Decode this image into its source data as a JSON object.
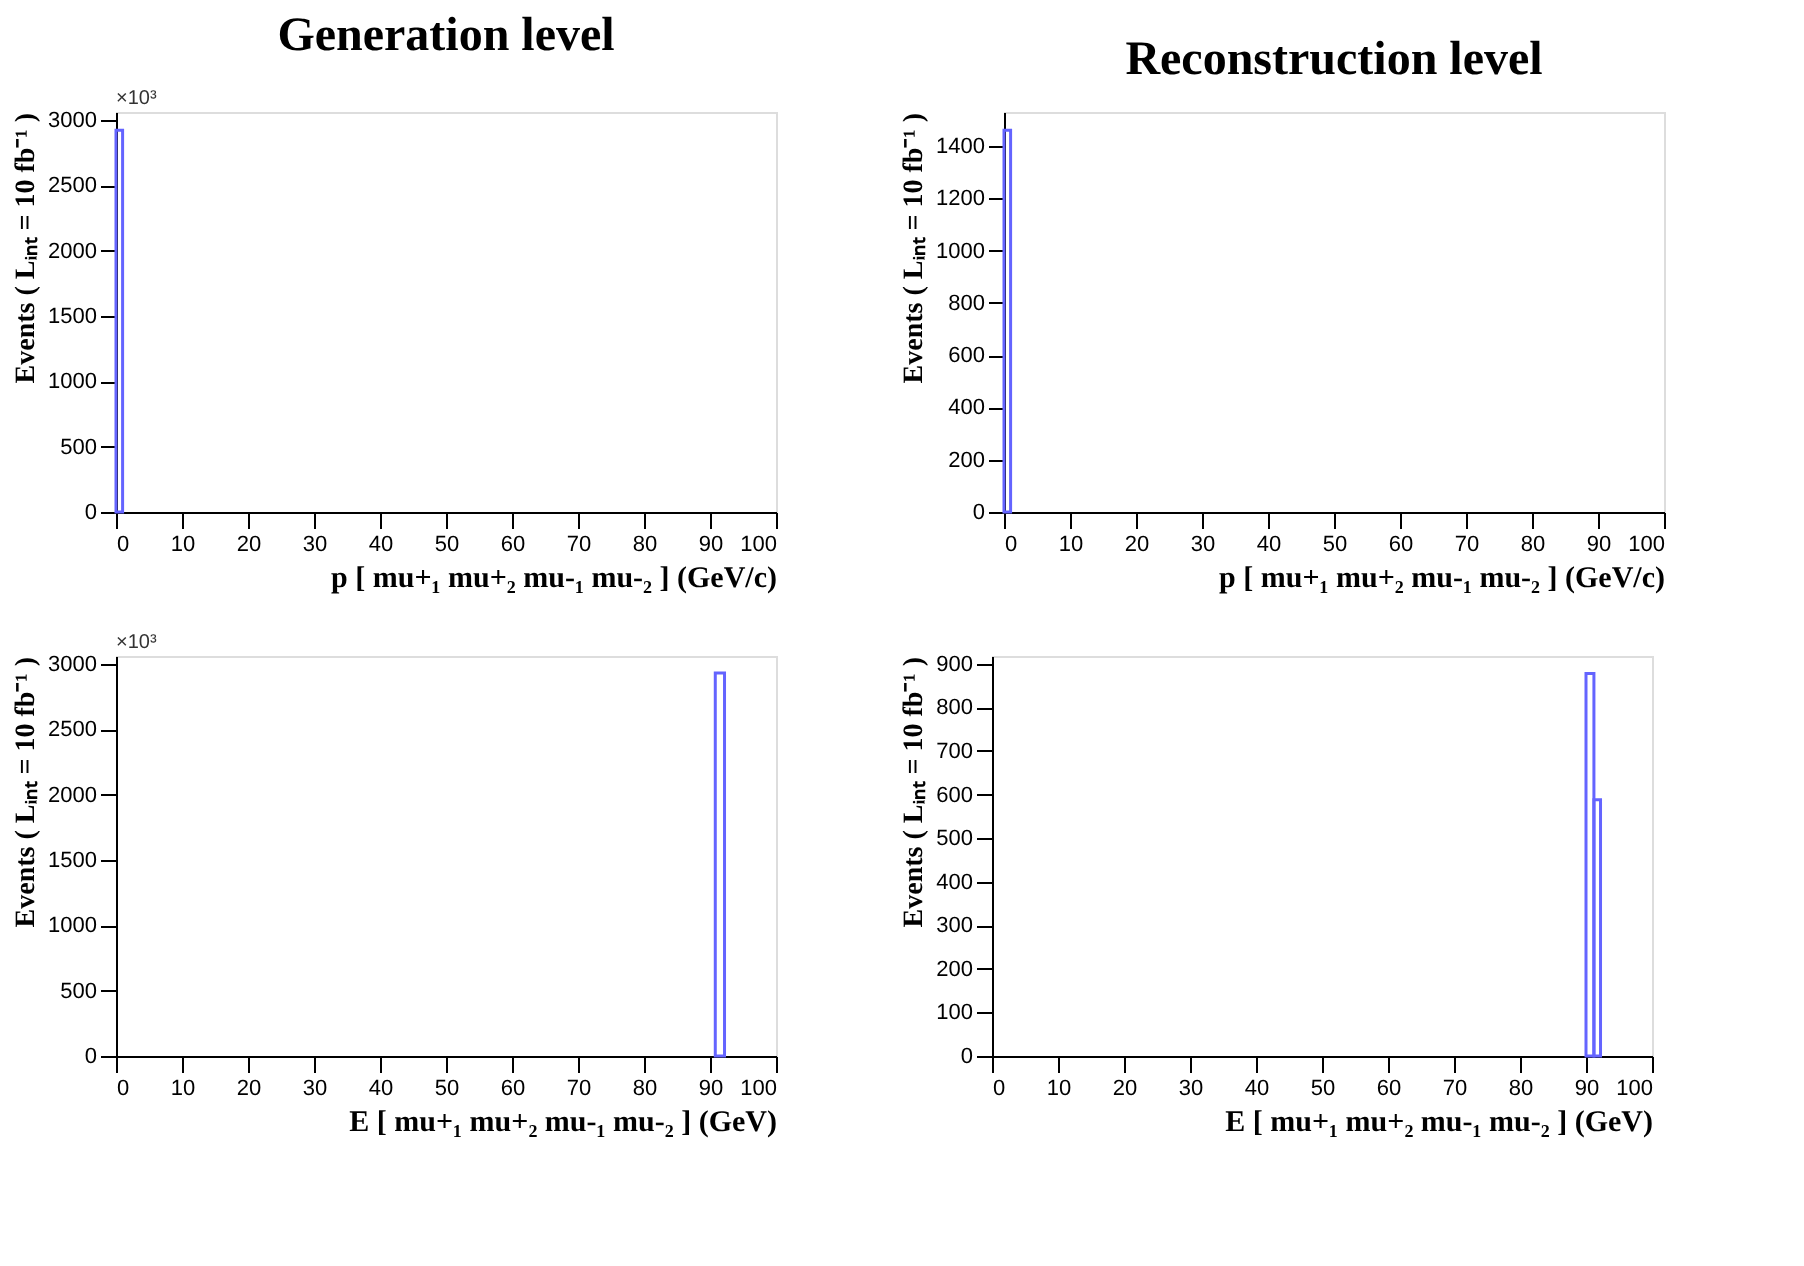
{
  "chart_data": [
    {
      "type": "histogram",
      "title": "Generation level",
      "xlabel": "p [ mu+₁ mu+₂ mu-₁ mu-₂ ] (GeV/c)",
      "ylabel": "Events ( Lᵢₙₜ = 10 fb⁻¹ )",
      "annotations": [
        "×10³"
      ],
      "bins": [
        0,
        1
      ],
      "values": [
        2920
      ],
      "color": "#6464ff",
      "xlim": [
        0,
        100
      ],
      "xticks": [
        0,
        10,
        20,
        30,
        40,
        50,
        60,
        70,
        80,
        90,
        100
      ],
      "ylim": [
        0,
        3060
      ],
      "yticks": [
        0,
        500,
        1000,
        1500,
        2000,
        2500,
        3000
      ],
      "grid": false
    },
    {
      "type": "histogram",
      "title": "Reconstruction level",
      "xlabel": "p [ mu+₁ mu+₂ mu-₁ mu-₂ ] (GeV/c)",
      "ylabel": "Events ( Lᵢₙₜ = 10 fb⁻¹ )",
      "bins": [
        0,
        1
      ],
      "values": [
        1460
      ],
      "color": "#6464ff",
      "xlim": [
        0,
        100
      ],
      "xticks": [
        0,
        10,
        20,
        30,
        40,
        50,
        60,
        70,
        80,
        90,
        100
      ],
      "ylim": [
        0,
        1530
      ],
      "yticks": [
        0,
        200,
        400,
        600,
        800,
        1000,
        1200,
        1400
      ],
      "grid": false
    },
    {
      "type": "histogram",
      "xlabel": "E [ mu+₁ mu+₂ mu-₁ mu-₂ ] (GeV)",
      "ylabel": "Events ( Lᵢₙₜ = 10 fb⁻¹ )",
      "annotations": [
        "×10³"
      ],
      "bins": [
        90.8,
        92.2
      ],
      "values": [
        2930
      ],
      "color": "#6464ff",
      "xlim": [
        0,
        100
      ],
      "xticks": [
        0,
        10,
        20,
        30,
        40,
        50,
        60,
        70,
        80,
        90,
        100
      ],
      "ylim": [
        0,
        3060
      ],
      "yticks": [
        0,
        500,
        1000,
        1500,
        2000,
        2500,
        3000
      ],
      "grid": false
    },
    {
      "type": "histogram",
      "xlabel": "E [ mu+₁ mu+₂ mu-₁ mu-₂ ] (GeV)",
      "ylabel": "Events ( Lᵢₙₜ = 10 fb⁻¹ )",
      "bins": [
        90,
        91.2,
        92.2
      ],
      "values": [
        878,
        588
      ],
      "color": "#6464ff",
      "xlim": [
        0,
        100
      ],
      "xticks": [
        0,
        10,
        20,
        30,
        40,
        50,
        60,
        70,
        80,
        90,
        100
      ],
      "ylim": [
        0,
        918
      ],
      "yticks": [
        0,
        100,
        200,
        300,
        400,
        500,
        600,
        700,
        800,
        900
      ],
      "grid": false
    }
  ]
}
